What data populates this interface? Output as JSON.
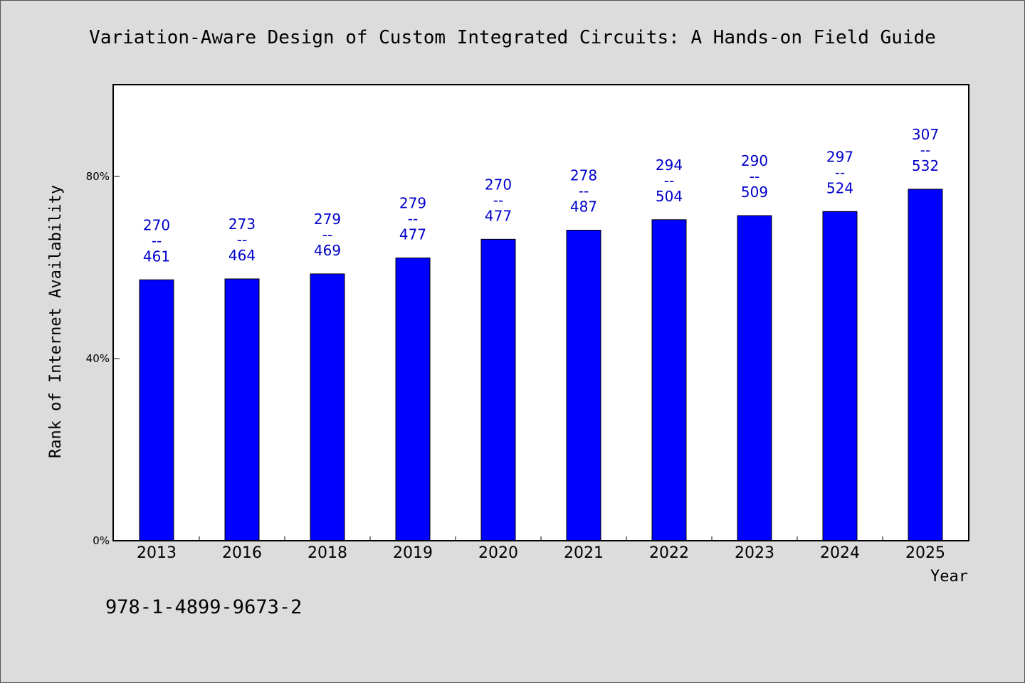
{
  "chart_data": {
    "type": "bar",
    "title": "Variation-Aware Design of Custom Integrated Circuits: A Hands-on Field Guide",
    "xlabel": "Year",
    "ylabel": "Rank of Internet Availability",
    "categories": [
      "2013",
      "2016",
      "2018",
      "2019",
      "2020",
      "2021",
      "2022",
      "2023",
      "2024",
      "2025"
    ],
    "values": [
      57.3,
      57.5,
      58.6,
      62.1,
      66.2,
      68.2,
      70.5,
      71.4,
      72.3,
      77.2
    ],
    "ylim": [
      0,
      100
    ],
    "yticks": [
      {
        "value": 0,
        "label": "0%"
      },
      {
        "value": 40,
        "label": "40%"
      },
      {
        "value": 80,
        "label": "80%"
      }
    ],
    "data_labels": [
      {
        "top": "270",
        "sep": "--",
        "bottom": "461"
      },
      {
        "top": "273",
        "sep": "--",
        "bottom": "464"
      },
      {
        "top": "279",
        "sep": "--",
        "bottom": "469"
      },
      {
        "top": "279",
        "sep": "--",
        "bottom": "477"
      },
      {
        "top": "270",
        "sep": "--",
        "bottom": "477"
      },
      {
        "top": "278",
        "sep": "--",
        "bottom": "487"
      },
      {
        "top": "294",
        "sep": "--",
        "bottom": "504"
      },
      {
        "top": "290",
        "sep": "--",
        "bottom": "509"
      },
      {
        "top": "297",
        "sep": "--",
        "bottom": "524"
      },
      {
        "top": "307",
        "sep": "--",
        "bottom": "532"
      }
    ],
    "grid": false,
    "colors": {
      "bar": "#0000ff",
      "label": "#0000cc",
      "background": "#dcdcdc",
      "plot": "#ffffff"
    }
  },
  "footer": {
    "isbn": "978-1-4899-9673-2"
  }
}
